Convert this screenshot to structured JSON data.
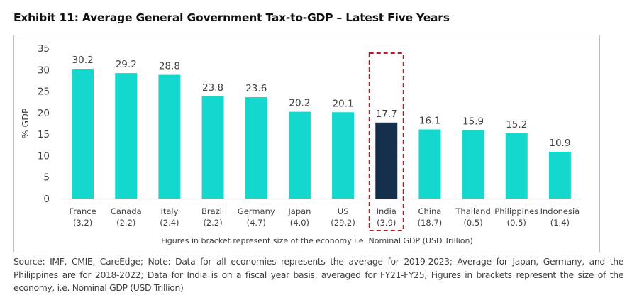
{
  "chart_data": {
    "type": "bar",
    "title": "Exhibit 11: Average General Government Tax-to-GDP – Latest Five Years",
    "xlabel": "Figures in bracket represent size of the economy i.e. Nominal GDP (USD Trillion)",
    "ylabel": "% GDP",
    "ylim": [
      0,
      35
    ],
    "yticks": [
      "0",
      "5",
      "10",
      "15",
      "20",
      "25",
      "30",
      "35"
    ],
    "grid": false,
    "categories": [
      "France",
      "Canada",
      "Italy",
      "Brazil",
      "Germany",
      "Japan",
      "US",
      "India",
      "China",
      "Thailand",
      "Philippines",
      "Indonesia"
    ],
    "category_sublabels": [
      "(3.2)",
      "(2.2)",
      "(2.4)",
      "(2.2)",
      "(4.7)",
      "(4.0)",
      "(29.2)",
      "(3.9)",
      "(18.7)",
      "(0.5)",
      "(0.5)",
      "(1.4)"
    ],
    "values": [
      30.2,
      29.2,
      28.8,
      23.8,
      23.6,
      20.2,
      20.1,
      17.7,
      16.1,
      15.9,
      15.2,
      10.9
    ],
    "data_labels": [
      "30.2",
      "29.2",
      "28.8",
      "23.8",
      "23.6",
      "20.2",
      "20.1",
      "17.7",
      "16.1",
      "15.9",
      "15.2",
      "10.9"
    ],
    "highlight": "India",
    "colors": {
      "bar": "#14d7ce",
      "highlight_bar": "#14304c",
      "highlight_box": "#b0202a",
      "axis": "#d9d9d9",
      "text": "#404040"
    }
  },
  "source_note": "Source: IMF, CMIE, CareEdge; Note: Data for all economies represents the average for 2019-2023; Average for Japan, Germany, and the Philippines are for 2018-2022; Data for India is on a fiscal year basis, averaged for FY21-FY25; Figures in brackets represent the size of the economy, i.e. Nominal GDP (USD Trillion)"
}
